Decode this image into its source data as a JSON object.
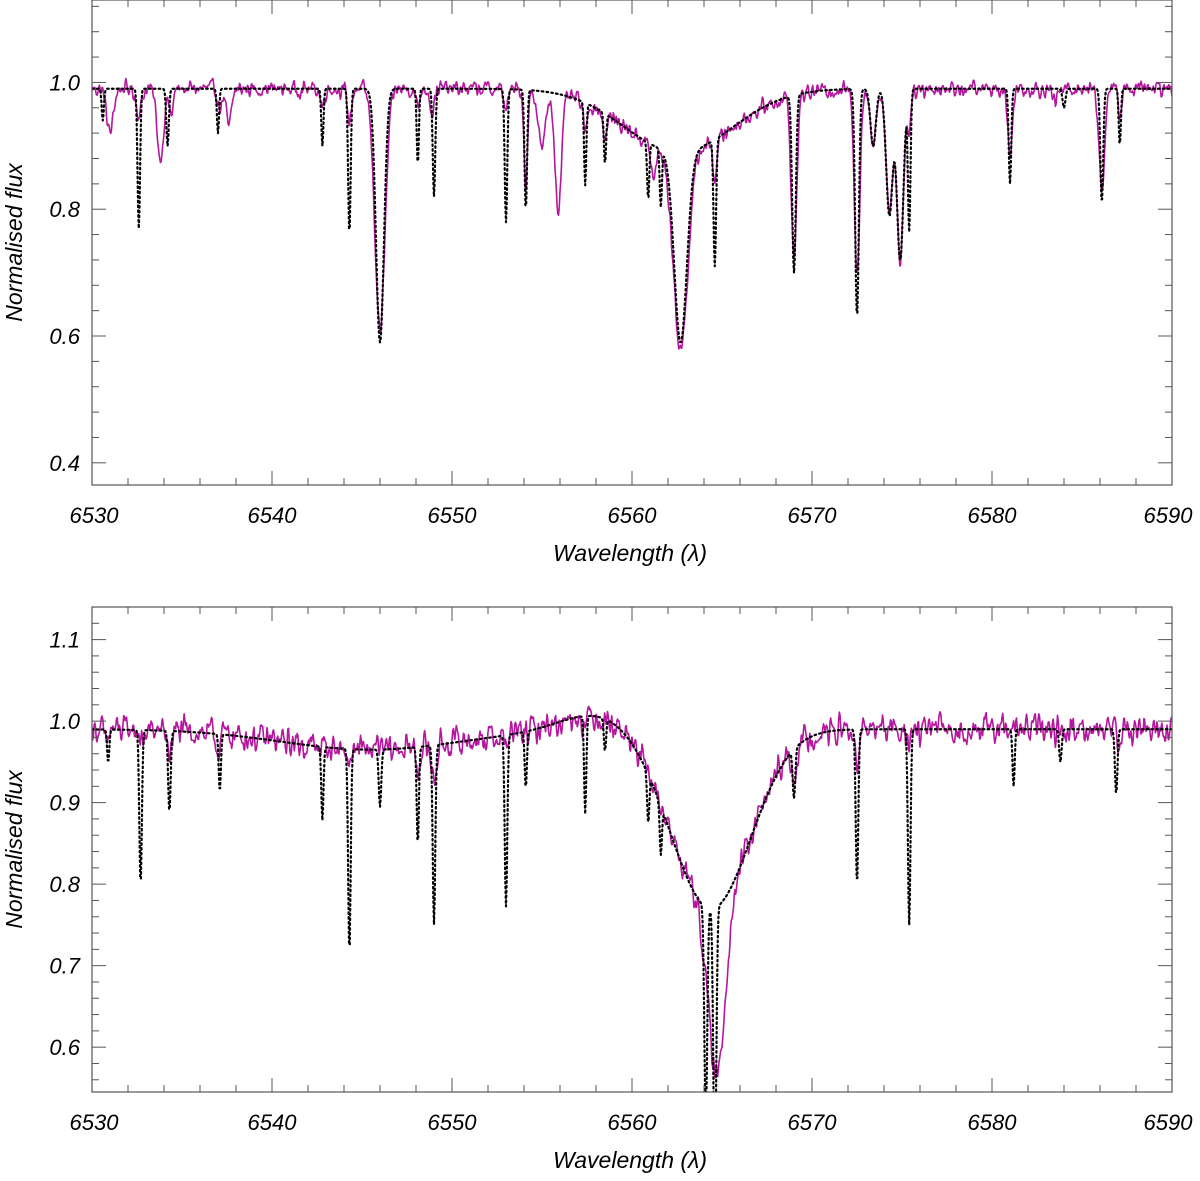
{
  "colors": {
    "observed": "#b5179e",
    "model": "#000000",
    "axes": "#555555"
  },
  "chart_data": [
    {
      "type": "line",
      "xlabel": "Wavelength (λ)",
      "ylabel": "Normalised flux",
      "xlim": [
        6530,
        6590
      ],
      "ylim": [
        0.365,
        1.13
      ],
      "xticks": [
        "6530",
        "6540",
        "6550",
        "6560",
        "6570",
        "6580",
        "6590"
      ],
      "yticks": [
        "0.4",
        "0.6",
        "0.8",
        "1.0"
      ],
      "legend": "none",
      "grid": false,
      "continuum": 0.99,
      "series": [
        {
          "style": "solid",
          "color": "#b5179e",
          "lines": [
            [
              6531.0,
              0.92,
              0.18
            ],
            [
              6532.6,
              0.95,
              0.15
            ],
            [
              6533.8,
              0.88,
              0.18
            ],
            [
              6534.4,
              0.95,
              0.12
            ],
            [
              6537.1,
              0.96,
              0.12
            ],
            [
              6537.6,
              0.93,
              0.15
            ],
            [
              6542.8,
              0.96,
              0.1
            ],
            [
              6544.3,
              0.94,
              0.12
            ],
            [
              6546.0,
              0.61,
              0.28
            ],
            [
              6548.1,
              0.96,
              0.1
            ],
            [
              6548.9,
              0.95,
              0.1
            ],
            [
              6553.0,
              0.96,
              0.12
            ],
            [
              6554.1,
              0.84,
              0.1
            ],
            [
              6555.0,
              0.9,
              0.2
            ],
            [
              6555.9,
              0.81,
              0.18
            ],
            [
              6557.4,
              0.94,
              0.1
            ],
            [
              6558.5,
              0.95,
              0.1
            ],
            [
              6561.2,
              0.94,
              0.15
            ],
            [
              6562.7,
              0.68,
              0.4
            ],
            [
              6564.6,
              0.93,
              0.12
            ],
            [
              6569.0,
              0.73,
              0.15
            ],
            [
              6572.5,
              0.7,
              0.15
            ],
            [
              6573.4,
              0.9,
              0.15
            ],
            [
              6574.3,
              0.79,
              0.18
            ],
            [
              6574.9,
              0.72,
              0.18
            ],
            [
              6575.4,
              0.93,
              0.1
            ],
            [
              6581.0,
              0.88,
              0.12
            ],
            [
              6583.5,
              0.97,
              0.15
            ],
            [
              6586.1,
              0.83,
              0.15
            ],
            [
              6587.1,
              0.95,
              0.1
            ]
          ],
          "broad": [
            [
              6562.6,
              0.1,
              3.0
            ]
          ],
          "noise": 0.008
        },
        {
          "style": "dotted",
          "color": "#000000",
          "lines": [
            [
              6530.6,
              0.94,
              0.06
            ],
            [
              6532.6,
              0.77,
              0.07
            ],
            [
              6534.2,
              0.9,
              0.07
            ],
            [
              6537.0,
              0.92,
              0.06
            ],
            [
              6542.8,
              0.9,
              0.06
            ],
            [
              6544.3,
              0.76,
              0.07
            ],
            [
              6546.0,
              0.59,
              0.22
            ],
            [
              6548.1,
              0.87,
              0.06
            ],
            [
              6549.0,
              0.82,
              0.07
            ],
            [
              6553.0,
              0.78,
              0.07
            ],
            [
              6554.1,
              0.8,
              0.07
            ],
            [
              6557.4,
              0.86,
              0.06
            ],
            [
              6558.5,
              0.91,
              0.06
            ],
            [
              6560.9,
              0.9,
              0.06
            ],
            [
              6561.6,
              0.9,
              0.06
            ],
            [
              6562.7,
              0.69,
              0.35
            ],
            [
              6564.6,
              0.79,
              0.07
            ],
            [
              6569.0,
              0.71,
              0.1
            ],
            [
              6572.5,
              0.63,
              0.1
            ],
            [
              6573.4,
              0.9,
              0.15
            ],
            [
              6574.3,
              0.79,
              0.18
            ],
            [
              6574.9,
              0.72,
              0.18
            ],
            [
              6575.4,
              0.77,
              0.07
            ],
            [
              6581.0,
              0.84,
              0.07
            ],
            [
              6584.0,
              0.96,
              0.08
            ],
            [
              6586.1,
              0.81,
              0.08
            ],
            [
              6587.1,
              0.9,
              0.06
            ]
          ],
          "broad": [
            [
              6562.6,
              0.1,
              3.0
            ]
          ],
          "noise": 0.0
        }
      ]
    },
    {
      "type": "line",
      "xlabel": "Wavelength (λ)",
      "ylabel": "Normalised flux",
      "xlim": [
        6530,
        6590
      ],
      "ylim": [
        0.545,
        1.14
      ],
      "xticks": [
        "6530",
        "6540",
        "6550",
        "6560",
        "6570",
        "6580",
        "6590"
      ],
      "yticks": [
        "0.6",
        "0.7",
        "0.8",
        "0.9",
        "1.0",
        "1.1"
      ],
      "legend": "none",
      "grid": false,
      "continuum": 0.99,
      "series": [
        {
          "style": "solid",
          "color": "#b5179e",
          "lines": [
            [
              6530.8,
              0.97,
              0.1
            ],
            [
              6532.8,
              0.97,
              0.1
            ],
            [
              6534.3,
              0.96,
              0.1
            ],
            [
              6537.0,
              0.97,
              0.1
            ],
            [
              6544.3,
              0.97,
              0.1
            ],
            [
              6548.1,
              0.96,
              0.1
            ],
            [
              6549.0,
              0.95,
              0.15
            ],
            [
              6553.0,
              0.98,
              0.1
            ],
            [
              6557.4,
              0.98,
              0.1
            ],
            [
              6563.0,
              0.995,
              0.2
            ],
            [
              6564.7,
              0.78,
              0.45
            ],
            [
              6569.0,
              0.96,
              0.15
            ],
            [
              6572.5,
              0.95,
              0.15
            ],
            [
              6575.4,
              0.96,
              0.1
            ],
            [
              6584.0,
              0.98,
              0.1
            ],
            [
              6587.1,
              0.97,
              0.1
            ]
          ],
          "broad": [
            [
              6564.4,
              0.22,
              2.2
            ],
            [
              6545.5,
              0.025,
              5.0
            ],
            [
              6558.0,
              -0.02,
              2.0
            ]
          ],
          "noise": 0.011
        },
        {
          "style": "dotted",
          "color": "#000000",
          "lines": [
            [
              6530.9,
              0.95,
              0.06
            ],
            [
              6532.7,
              0.8,
              0.07
            ],
            [
              6534.3,
              0.89,
              0.07
            ],
            [
              6537.1,
              0.92,
              0.06
            ],
            [
              6542.8,
              0.9,
              0.06
            ],
            [
              6544.3,
              0.74,
              0.07
            ],
            [
              6546.0,
              0.92,
              0.07
            ],
            [
              6548.1,
              0.87,
              0.06
            ],
            [
              6549.0,
              0.77,
              0.07
            ],
            [
              6553.0,
              0.78,
              0.07
            ],
            [
              6554.1,
              0.92,
              0.06
            ],
            [
              6557.4,
              0.87,
              0.06
            ],
            [
              6558.5,
              0.95,
              0.06
            ],
            [
              6560.9,
              0.93,
              0.06
            ],
            [
              6561.6,
              0.93,
              0.06
            ],
            [
              6564.1,
              0.73,
              0.08
            ],
            [
              6564.6,
              0.65,
              0.08
            ],
            [
              6569.0,
              0.93,
              0.07
            ],
            [
              6572.5,
              0.8,
              0.07
            ],
            [
              6575.4,
              0.75,
              0.07
            ],
            [
              6581.2,
              0.92,
              0.06
            ],
            [
              6583.8,
              0.95,
              0.07
            ],
            [
              6586.9,
              0.91,
              0.07
            ]
          ],
          "broad": [
            [
              6564.4,
              0.22,
              2.2
            ],
            [
              6545.5,
              0.025,
              5.0
            ],
            [
              6558.0,
              -0.02,
              2.0
            ]
          ],
          "noise": 0.0
        }
      ]
    }
  ]
}
